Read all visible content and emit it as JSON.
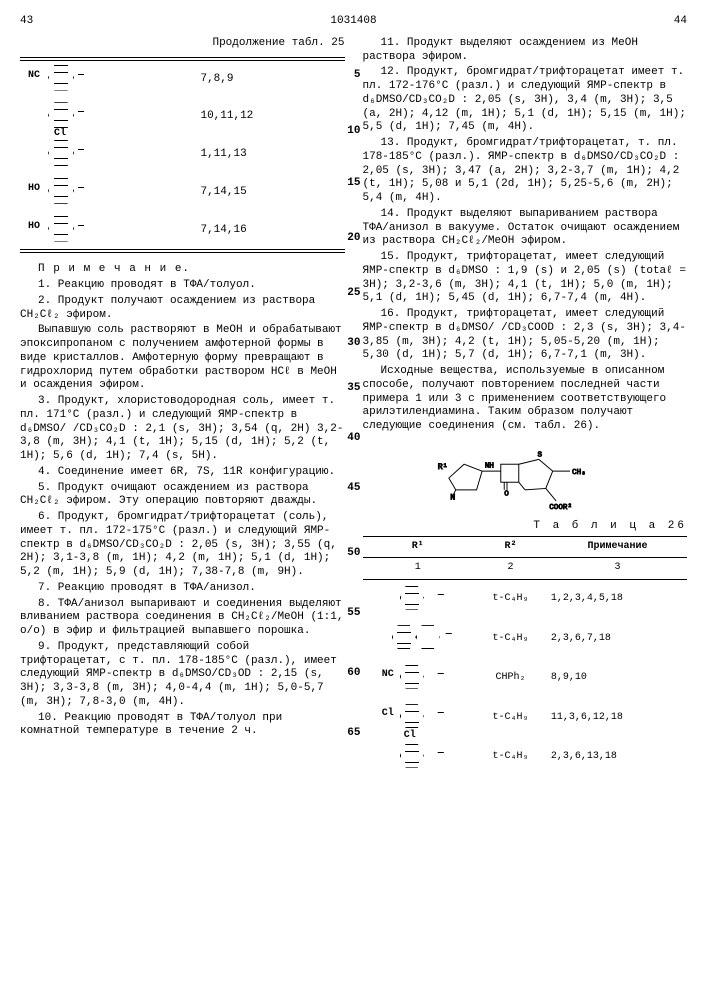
{
  "header": {
    "left_page": "43",
    "docnum": "1031408",
    "right_page": "44"
  },
  "left": {
    "cont_title": "Продолжение табл. 25",
    "tbl25_rows": [
      {
        "left_sub": "NC",
        "refs": "7,8,9"
      },
      {
        "left_sub": "",
        "refs": "10,11,12"
      },
      {
        "top_sub": "Cl",
        "refs": "1,11,13"
      },
      {
        "left_sub": "HO",
        "refs": "7,14,15"
      },
      {
        "left_sub": "HO",
        "extra_sub": "",
        "refs": "7,14,16"
      }
    ],
    "notes_title": "П р и м е ч а н и е.",
    "notes": [
      "1. Реакцию проводят в ТФА/толуол.",
      "2. Продукт получают осаждением из раствора CH₂Cℓ₂ эфиром.",
      "Выпавшую соль растворяют в MeOH и обрабатывают эпоксипропаном с получением амфотерной формы в виде кристаллов. Амфотерную форму превращают в гидрохлорид путем обработки раствором HCℓ в MeOH и осаждения эфиром.",
      "3. Продукт, хлористоводородная соль, имеет т. пл. 171°С (разл.) и следующий ЯМР-спектр в d₆DMSO/ /CD₃CO₂D : 2,1 (s, 3H); 3,54 (q, 2H) 3,2-3,8 (m, 3H); 4,1 (t, 1H); 5,15 (d, 1H); 5,2 (t, 1H); 5,6 (d, 1H); 7,4 (s, 5H).",
      "4. Соединение имеет 6R, 7S, 11R конфигурацию.",
      "5. Продукт очищают осаждением из раствора CH₂Cℓ₂ эфиром. Эту операцию повторяют дважды.",
      "6. Продукт, бромгидрат/трифторацетат (соль), имеет т. пл. 172-175°С (разл.) и следующий ЯМР-спектр в d₆DMSO/CD₃CO₂D : 2,05 (s, 3H); 3,55 (q, 2H); 3,1-3,8 (m, 1H); 4,2 (m, 1H); 5,1 (d, 1H); 5,2 (m, 1H); 5,9 (d, 1H); 7,38-7,8 (m, 9H).",
      "7. Реакцию проводят в ТФА/анизол.",
      "8. ТФА/анизол выпаривают и соединения выделяют вливанием раствора соединения в CH₂Cℓ₂/MeOH (1:1, о/о) в эфир и фильтрацией выпавшего порошка.",
      "9. Продукт, представляющий собой трифторацетат, с т. пл. 178-185°С (разл.), имеет следующий ЯМР-спектр в d₆DMSO/CD₃OD : 2,15 (s, 3H); 3,3-3,8 (m, 3H); 4,0-4,4 (m, 1H); 5,0-5,7 (m, 3H); 7,8-3,0 (m, 4H).",
      "10. Реакцию проводят в ТФА/толуол при комнатной температуре в течение 2 ч."
    ]
  },
  "right": {
    "margin_numbers": [
      "5",
      "10",
      "15",
      "20",
      "25",
      "30",
      "35",
      "40",
      "45",
      "50",
      "55",
      "60",
      "65"
    ],
    "notes": [
      "11. Продукт выделяют осаждением из MeOH раствора эфиром.",
      "12. Продукт, бромгидрат/трифторацетат имеет т. пл. 172-176°С (разл.) и следующий ЯМР-спектр в d₆DMSO/CD₃CO₂D : 2,05 (s, 3H), 3,4 (m, 3H); 3,5 (a, 2H); 4,12 (m, 1H); 5,1 (d, 1H); 5,15 (m, 1H); 5,5 (d, 1H); 7,45 (m, 4H).",
      "13. Продукт, бромгидрат/трифторацетат, т. пл. 178-185°С (разл.). ЯМР-спектр в d₆DMSO/CD₃CO₂D : 2,05 (s, 3H); 3,47 (a, 2H); 3,2-3,7 (m, 1H); 4,2 (t, 1H); 5,08 и 5,1 (2d, 1H); 5,25-5,6 (m, 2H); 5,4 (m, 4H).",
      "14. Продукт выделяют выпариванием раствора ТФА/анизол в вакууме. Остаток очищают осаждением из раствора CH₂Cℓ₂/MeOH эфиром.",
      "15. Продукт, трифторацетат, имеет следующий ЯМР-спектр в d₆DMSO : 1,9 (s) и 2,05 (s) (totaℓ = 3H); 3,2-3,6 (m, 3H); 4,1 (t, 1H); 5,0 (m, 1H); 5,1 (d, 1H); 5,45 (d, 1H); 6,7-7,4 (m, 4H).",
      "16. Продукт, трифторацетат, имеет следующий ЯМР-спектр в d₆DMSO/ /CD₃COOD : 2,3 (s, 3H); 3,4-3,85 (m, 3H); 4,2 (t, 1H); 5,05-5,20 (m, 1H); 5,30 (d, 1H); 5,7 (d, 1H); 6,7-7,1 (m, 3H).",
      "Исходные вещества, используемые в описанном способе, получают повторением последней части примера 1 или 3 с применением соответствующего арилэтилендиамина. Таким образом получают следующие соединения (см. табл. 26)."
    ],
    "struct_labels": {
      "r1": "R¹",
      "nh": "NH",
      "n": "N",
      "s": "S",
      "ch3": "CH₃",
      "o": "O",
      "coor2": "COOR²"
    },
    "tbl26_title": "Т а б л и ц а  26",
    "tbl26_head": [
      "R¹",
      "R²",
      "Примечание"
    ],
    "tbl26_subhead": [
      "1",
      "2",
      "3"
    ],
    "tbl26_rows": [
      {
        "r1_sub": "",
        "r2": "t-C₄H₉",
        "note": "1,2,3,4,5,18"
      },
      {
        "r1_sub": "",
        "r2": "t-C₄H₉",
        "note": "2,3,6,7,18",
        "biphenyl": true
      },
      {
        "r1_sub": "NC",
        "r2": "CHPh₂",
        "note": "8,9,10"
      },
      {
        "r1_sub": "Cl",
        "r2": "t-C₄H₉",
        "note": "11,3,6,12,18"
      },
      {
        "r1_sub": "",
        "r1_top": "Cl",
        "r2": "t-C₄H₉",
        "note": "2,3,6,13,18"
      }
    ]
  }
}
